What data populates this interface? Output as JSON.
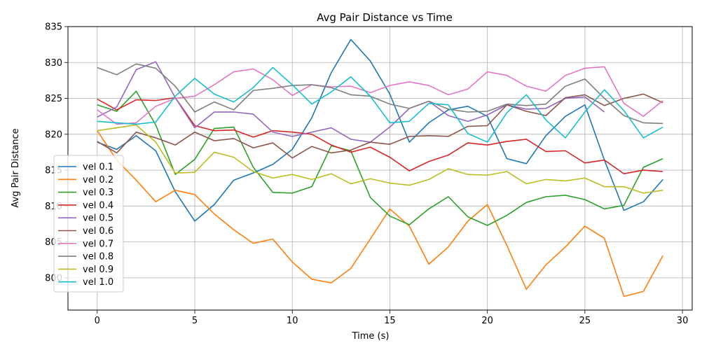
{
  "chart_data": {
    "type": "line",
    "title": "Avg Pair Distance vs Time",
    "xlabel": "Time (s)",
    "ylabel": "Avg Pair Distance",
    "xlim": [
      -1.5,
      30.5
    ],
    "ylim": [
      795.5,
      835
    ],
    "xticks": [
      0,
      5,
      10,
      15,
      20,
      25,
      30
    ],
    "yticks": [
      800,
      805,
      810,
      815,
      820,
      825,
      830,
      835
    ],
    "grid": true,
    "legend_position": "lower-left",
    "x": [
      0,
      1,
      2,
      3,
      4,
      5,
      6,
      7,
      8,
      9,
      10,
      11,
      12,
      13,
      14,
      15,
      16,
      17,
      18,
      19,
      20,
      21,
      22,
      23,
      24,
      25,
      26,
      27,
      28,
      29
    ],
    "series": [
      {
        "name": "vel 0.1",
        "color": "#1f77b4",
        "values": [
          818.9,
          817.9,
          819.8,
          817.7,
          812.0,
          807.9,
          810.2,
          813.6,
          814.6,
          815.8,
          817.9,
          822.3,
          828.6,
          833.2,
          830.2,
          825.6,
          818.9,
          821.6,
          823.4,
          823.9,
          822.5,
          816.6,
          815.9,
          819.8,
          822.5,
          824.1,
          816.4,
          809.4,
          810.6,
          813.7
        ],
        "x": [
          0,
          1,
          2,
          3,
          4,
          5,
          6,
          7,
          8,
          9,
          10,
          11,
          12,
          13,
          14,
          15,
          16,
          17,
          18,
          19,
          20,
          21,
          22,
          23,
          24,
          25,
          26,
          27,
          28,
          29
        ]
      },
      {
        "name": "vel 0.2",
        "color": "#ff7f0e",
        "values": [
          820.5,
          816.4,
          813.6,
          810.6,
          812.2,
          811.6,
          808.9,
          806.7,
          804.8,
          805.4,
          802.2,
          799.8,
          799.3,
          801.3,
          805.4,
          809.6,
          807.2,
          801.9,
          804.3,
          807.9,
          810.2,
          804.5,
          798.4,
          801.8,
          804.3,
          807.2,
          805.5,
          797.4,
          798.1,
          803.1
        ],
        "x": [
          0,
          1,
          2,
          3,
          4,
          5,
          6,
          7,
          8,
          9,
          10,
          11,
          12,
          13,
          14,
          15,
          16,
          17,
          18,
          19,
          20,
          21,
          22,
          23,
          24,
          25,
          26,
          27,
          28,
          29
        ]
      },
      {
        "name": "vel 0.3",
        "color": "#2ca02c",
        "values": [
          824.1,
          823.2,
          826.0,
          821.3,
          814.4,
          816.5,
          820.8,
          821.0,
          815.4,
          811.9,
          811.8,
          812.7,
          818.4,
          817.7,
          811.2,
          808.6,
          807.4,
          809.6,
          811.3,
          808.5,
          807.3,
          808.7,
          810.5,
          811.3,
          811.5,
          810.9,
          809.6,
          810.1,
          815.4,
          816.6
        ],
        "x": [
          0,
          1,
          2,
          3,
          4,
          5,
          6,
          7,
          8,
          9,
          10,
          11,
          12,
          13,
          14,
          15,
          16,
          17,
          18,
          19,
          20,
          21,
          22,
          23,
          24,
          25,
          26,
          27,
          28,
          29
        ]
      },
      {
        "name": "vel 0.4",
        "color": "#d62728",
        "values": [
          824.9,
          823.4,
          824.8,
          824.7,
          825.1,
          821.2,
          820.5,
          820.6,
          819.6,
          820.5,
          820.3,
          820.0,
          818.5,
          817.5,
          818.2,
          816.8,
          814.9,
          816.2,
          817.1,
          818.8,
          818.5,
          819.0,
          819.3,
          817.6,
          817.7,
          816.0,
          816.4,
          814.5,
          815.0,
          814.8
        ],
        "x": [
          0,
          1,
          2,
          3,
          4,
          5,
          6,
          7,
          8,
          9,
          10,
          11,
          12,
          13,
          14,
          15,
          16,
          17,
          18,
          19,
          20,
          21,
          22,
          23,
          24,
          25,
          26,
          27,
          28,
          29
        ]
      },
      {
        "name": "vel 0.5",
        "color": "#9467bd",
        "values": [
          822.4,
          823.8,
          829.0,
          830.1,
          825.1,
          820.9,
          823.1,
          823.1,
          822.8,
          820.3,
          819.7,
          820.3,
          820.9,
          819.3,
          818.9,
          821.0,
          823.6,
          824.6,
          822.6,
          821.8,
          822.7,
          824.1,
          823.5,
          823.6,
          825.0,
          825.2,
          823.1
        ],
        "x": [
          0,
          1,
          2,
          3,
          4,
          5,
          6,
          7,
          8,
          9,
          10,
          11,
          12,
          13,
          14,
          15,
          16,
          17,
          18,
          19,
          20,
          21,
          22,
          23,
          24,
          25,
          26
        ]
      },
      {
        "name": "vel 0.6",
        "color": "#8c564b",
        "values": [
          819.0,
          817.4,
          820.3,
          819.5,
          818.5,
          820.3,
          819.1,
          819.4,
          818.1,
          818.8,
          816.7,
          818.3,
          817.4,
          817.8,
          818.9,
          818.6,
          819.7,
          819.8,
          819.7,
          821.1,
          821.2,
          824.1,
          823.2,
          822.6,
          825.1,
          825.5,
          824.0,
          825.0,
          825.6,
          824.4
        ],
        "x": [
          0,
          1,
          2,
          3,
          4,
          5,
          6,
          7,
          8,
          9,
          10,
          11,
          12,
          13,
          14,
          15,
          16,
          17,
          18,
          19,
          20,
          21,
          22,
          23,
          24,
          25,
          26,
          27,
          28,
          29
        ]
      },
      {
        "name": "vel 0.7",
        "color": "#e377c2",
        "values": [
          823.4,
          821.4,
          821.6,
          823.9,
          825.0,
          825.3,
          826.9,
          828.7,
          829.1,
          827.6,
          825.4,
          826.9,
          826.6,
          826.7,
          825.8,
          826.8,
          827.3,
          826.8,
          825.5,
          826.3,
          828.7,
          828.2,
          826.7,
          826.0,
          828.2,
          829.2,
          829.4,
          824.3,
          822.5,
          824.7
        ],
        "x": [
          0,
          1,
          2,
          3,
          4,
          5,
          6,
          7,
          8,
          9,
          10,
          11,
          12,
          13,
          14,
          15,
          16,
          17,
          18,
          19,
          20,
          21,
          22,
          23,
          24,
          25,
          26,
          27,
          28,
          29
        ]
      },
      {
        "name": "vel 0.8",
        "color": "#7f7f7f",
        "values": [
          829.3,
          828.3,
          829.8,
          829.2,
          826.7,
          823.1,
          824.5,
          823.4,
          826.1,
          826.4,
          826.8,
          826.9,
          826.5,
          825.5,
          825.3,
          824.2,
          823.6,
          824.6,
          823.5,
          823.1,
          823.2,
          824.2,
          824.0,
          824.2,
          826.7,
          827.7,
          825.0,
          822.6,
          821.6,
          821.5
        ],
        "x": [
          0,
          1,
          2,
          3,
          4,
          5,
          6,
          7,
          8,
          9,
          10,
          11,
          12,
          13,
          14,
          15,
          16,
          17,
          18,
          19,
          20,
          21,
          22,
          23,
          24,
          25,
          26,
          27,
          28,
          29
        ]
      },
      {
        "name": "vel 0.9",
        "color": "#bcbd22",
        "values": [
          820.5,
          820.9,
          821.3,
          818.9,
          814.6,
          814.7,
          817.5,
          816.8,
          814.8,
          813.9,
          814.4,
          813.7,
          814.5,
          813.1,
          813.8,
          813.2,
          812.9,
          813.7,
          815.2,
          814.4,
          814.3,
          814.8,
          813.1,
          813.7,
          813.5,
          813.9,
          812.7,
          812.7,
          811.8,
          812.2
        ],
        "x": [
          0,
          1,
          2,
          3,
          4,
          5,
          6,
          7,
          8,
          9,
          10,
          11,
          12,
          13,
          14,
          15,
          16,
          17,
          18,
          19,
          20,
          21,
          22,
          23,
          24,
          25,
          26,
          27,
          28,
          29
        ]
      },
      {
        "name": "vel 1.0",
        "color": "#17becf",
        "values": [
          821.8,
          821.6,
          821.4,
          821.7,
          825.3,
          827.8,
          825.6,
          824.5,
          826.5,
          829.3,
          826.9,
          824.2,
          825.9,
          828.0,
          825.3,
          821.6,
          821.8,
          824.3,
          824.1,
          820.1,
          818.9,
          823.0,
          825.5,
          822.0,
          819.5,
          823.1,
          826.2,
          823.3,
          819.5,
          821.0
        ],
        "x": [
          0,
          1,
          2,
          3,
          4,
          5,
          6,
          7,
          8,
          9,
          10,
          11,
          12,
          13,
          14,
          15,
          16,
          17,
          18,
          19,
          20,
          21,
          22,
          23,
          24,
          25,
          26,
          27,
          28,
          29
        ]
      }
    ]
  }
}
